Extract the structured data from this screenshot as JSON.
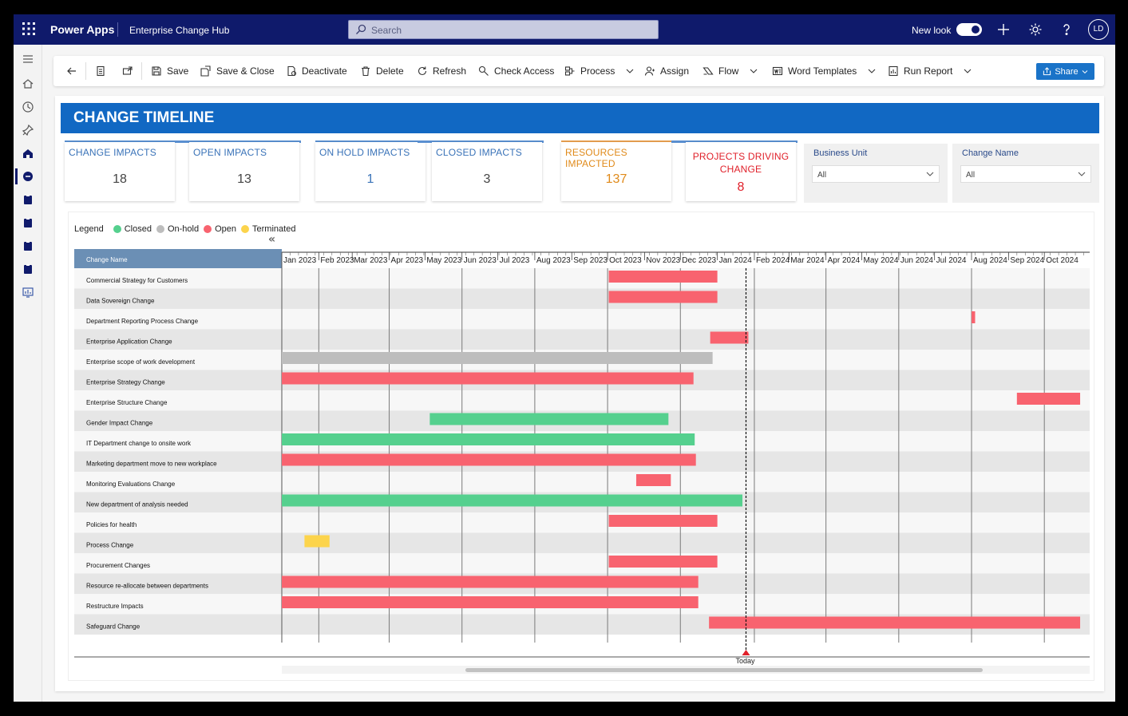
{
  "topbar": {
    "app_name": "Power Apps",
    "hub_name": "Enterprise Change Hub",
    "search_placeholder": "Search",
    "new_look_label": "New look",
    "avatar_initials": "LD"
  },
  "commands": {
    "save": "Save",
    "save_close": "Save & Close",
    "deactivate": "Deactivate",
    "delete": "Delete",
    "refresh": "Refresh",
    "check_access": "Check Access",
    "process": "Process",
    "assign": "Assign",
    "flow": "Flow",
    "word_templates": "Word Templates",
    "run_report": "Run Report",
    "share": "Share"
  },
  "banner": {
    "title": "CHANGE TIMELINE"
  },
  "kpis": [
    {
      "label": "CHANGE IMPACTS",
      "value": "18",
      "color": "#3a73b8",
      "bar": "#5a8fd0"
    },
    {
      "label": "OPEN IMPACTS",
      "value": "13",
      "color": "#3a73b8",
      "bar": "#5a8fd0"
    },
    {
      "label": "ON HOLD IMPACTS",
      "value": "1",
      "color": "#3a73b8",
      "bar": "#5a8fd0"
    },
    {
      "label": "CLOSED IMPACTS",
      "value": "3",
      "color": "#3a73b8",
      "bar": "#5a8fd0"
    },
    {
      "label": "RESOURCES IMPACTED",
      "value": "137",
      "color": "#e08a1a",
      "bar": "#e8a050"
    },
    {
      "label": "PROJECTS DRIVING CHANGE",
      "value": "8",
      "color": "#e0202a",
      "bar": "#5a8fd0"
    }
  ],
  "filters": [
    {
      "label": "Business Unit",
      "value": "All"
    },
    {
      "label": "Change Name",
      "value": "All"
    }
  ],
  "chart_data": {
    "type": "gantt",
    "legend_title": "Legend",
    "legend": [
      {
        "name": "Closed",
        "color": "#55d08e"
      },
      {
        "name": "On-hold",
        "color": "#bdbdbd"
      },
      {
        "name": "Open",
        "color": "#f8636f"
      },
      {
        "name": "Terminated",
        "color": "#fcd44c"
      }
    ],
    "name_column_header": "Change Name",
    "months": [
      "Jan 2023",
      "Feb 2023",
      "Mar 2023",
      "Apr 2023",
      "May 2023",
      "Jun 2023",
      "Jul 2023",
      "Aug 2023",
      "Sep 2023",
      "Oct 2023",
      "Nov 2023",
      "Dec 2023",
      "Jan 2024",
      "Feb 2024",
      "Mar 2024",
      "Apr 2024",
      "May 2024",
      "Jun 2024",
      "Jul 2024",
      "Aug 2024",
      "Sep 2024",
      "Oct 2024"
    ],
    "today_label": "Today",
    "today": "2024-01-25",
    "rows": [
      {
        "name": "Commercial Strategy for Customers",
        "status": "Open",
        "start": "2023-10-02",
        "end": "2024-01-01"
      },
      {
        "name": "Data Sovereign Change",
        "status": "Open",
        "start": "2023-10-02",
        "end": "2024-01-01"
      },
      {
        "name": "Department Reporting Process Change",
        "status": "Open",
        "start": "2024-08-01",
        "end": "2024-08-04"
      },
      {
        "name": "Enterprise Application Change",
        "status": "Open",
        "start": "2023-12-26",
        "end": "2024-01-27"
      },
      {
        "name": "Enterprise scope of work development",
        "status": "On-hold",
        "start": "2023-01-01",
        "end": "2023-12-28"
      },
      {
        "name": "Enterprise Strategy Change",
        "status": "Open",
        "start": "2023-01-01",
        "end": "2023-12-12"
      },
      {
        "name": "Enterprise Structure Change",
        "status": "Open",
        "start": "2024-09-08",
        "end": "2024-10-31"
      },
      {
        "name": "Gender Impact Change",
        "status": "Closed",
        "start": "2023-05-05",
        "end": "2023-11-21"
      },
      {
        "name": "IT Department change to onsite work",
        "status": "Closed",
        "start": "2023-01-01",
        "end": "2023-12-13"
      },
      {
        "name": "Marketing department move to new workplace",
        "status": "Open",
        "start": "2023-01-01",
        "end": "2023-12-14"
      },
      {
        "name": "Monitoring Evaluations Change",
        "status": "Open",
        "start": "2023-10-25",
        "end": "2023-11-23"
      },
      {
        "name": "New department of analysis needed",
        "status": "Closed",
        "start": "2023-01-01",
        "end": "2024-01-22"
      },
      {
        "name": "Policies for health",
        "status": "Open",
        "start": "2023-10-02",
        "end": "2024-01-01"
      },
      {
        "name": "Process Change",
        "status": "Terminated",
        "start": "2023-01-20",
        "end": "2023-02-10"
      },
      {
        "name": "Procurement Changes",
        "status": "Open",
        "start": "2023-10-02",
        "end": "2024-01-01"
      },
      {
        "name": "Resource re-allocate between departments",
        "status": "Open",
        "start": "2023-01-01",
        "end": "2023-12-16"
      },
      {
        "name": "Restructure Impacts",
        "status": "Open",
        "start": "2023-01-01",
        "end": "2023-12-16"
      },
      {
        "name": "Safeguard Change",
        "status": "Open",
        "start": "2023-12-25",
        "end": "2024-10-31"
      }
    ]
  }
}
